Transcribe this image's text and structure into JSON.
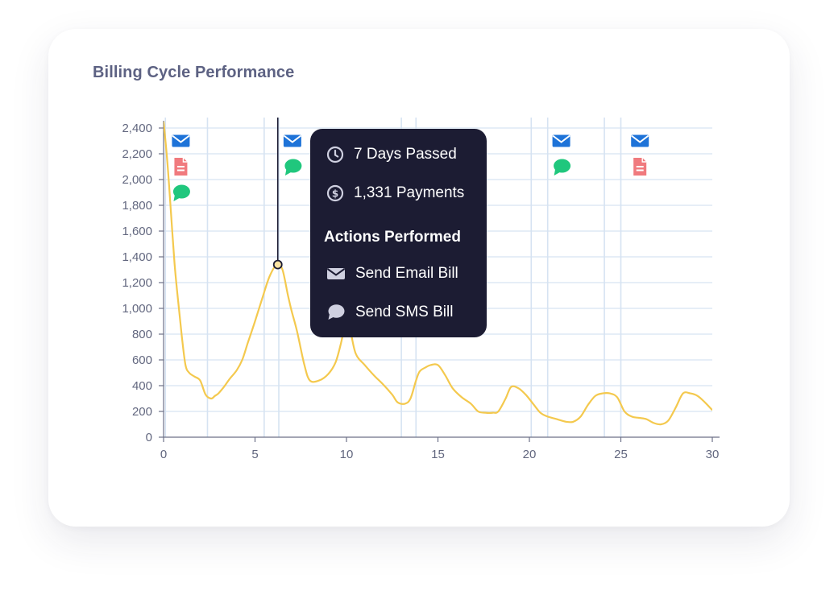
{
  "title": "Billing Cycle Performance",
  "chart_data": {
    "type": "line",
    "title": "Billing Cycle Performance",
    "xlabel": "",
    "ylabel": "",
    "xlim": [
      0,
      30
    ],
    "ylim": [
      0,
      2400
    ],
    "x_ticks": [
      0,
      5,
      10,
      15,
      20,
      25,
      30
    ],
    "y_ticks": [
      0,
      200,
      400,
      600,
      800,
      1000,
      1200,
      1400,
      1600,
      1800,
      2000,
      2200,
      2400
    ],
    "y_tick_labels": [
      "0",
      "200",
      "400",
      "600",
      "800",
      "1,000",
      "1,200",
      "1,400",
      "1,600",
      "1,800",
      "2,000",
      "2,200",
      "2,400"
    ],
    "grid": true,
    "line_color": "#f4c94e",
    "vertical_event_lines": [
      0.1,
      2.4,
      5.5,
      6.3,
      13,
      13.8,
      20.1,
      21,
      24.1,
      25
    ],
    "series": [
      {
        "x": [
          0,
          0.2,
          0.4,
          0.6,
          0.8,
          1.0,
          1.2,
          1.4,
          1.7,
          2.0,
          2.3,
          2.6,
          2.8,
          3.0,
          3.3,
          3.6,
          4.0,
          4.3,
          4.6,
          5.0,
          5.4,
          5.8,
          6.2,
          6.5,
          6.8,
          7.0,
          7.3,
          7.7,
          8.0,
          8.5,
          9.0,
          9.4,
          9.7,
          10.0,
          10.2,
          10.5,
          11.0,
          11.5,
          12.0,
          12.5,
          12.8,
          13.2,
          13.5,
          13.8,
          14.0,
          14.3,
          14.6,
          15.0,
          15.4,
          15.8,
          16.3,
          16.8,
          17.2,
          17.6,
          18.0,
          18.3,
          18.7,
          19.0,
          19.4,
          19.8,
          20.2,
          20.6,
          21.0,
          21.5,
          22.0,
          22.4,
          22.8,
          23.2,
          23.6,
          24.0,
          24.4,
          24.8,
          25.2,
          25.6,
          26.0,
          26.4,
          26.8,
          27.2,
          27.6,
          28.0,
          28.4,
          28.8,
          29.2,
          29.6,
          30.0
        ],
        "y": [
          2450,
          2150,
          1750,
          1350,
          1050,
          780,
          560,
          500,
          470,
          440,
          330,
          300,
          320,
          340,
          390,
          450,
          520,
          600,
          730,
          900,
          1080,
          1250,
          1340,
          1300,
          1100,
          980,
          820,
          560,
          440,
          440,
          490,
          580,
          730,
          920,
          840,
          650,
          560,
          480,
          410,
          330,
          270,
          260,
          300,
          440,
          510,
          540,
          560,
          560,
          480,
          380,
          310,
          260,
          200,
          190,
          190,
          200,
          300,
          390,
          380,
          330,
          260,
          190,
          160,
          140,
          120,
          120,
          160,
          250,
          320,
          340,
          340,
          310,
          200,
          160,
          150,
          140,
          110,
          100,
          130,
          230,
          340,
          340,
          320,
          270,
          210
        ]
      }
    ],
    "event_icons": [
      {
        "x": 0.9,
        "icons": [
          "mail-icon",
          "document-icon",
          "chat-icon"
        ]
      },
      {
        "x": 7.0,
        "icons": [
          "mail-icon",
          "chat-icon"
        ]
      },
      {
        "x": 21.7,
        "icons": [
          "mail-icon",
          "chat-icon"
        ]
      },
      {
        "x": 26.0,
        "icons": [
          "mail-icon",
          "document-icon"
        ]
      }
    ],
    "highlight": {
      "x": 6.2,
      "y": 1340
    }
  },
  "tooltip": {
    "days": "7 Days Passed",
    "payments": "1,331 Payments",
    "heading": "Actions Performed",
    "actions": [
      "Send Email Bill",
      "Send SMS Bill"
    ]
  },
  "colors": {
    "mail": "#1e73d8",
    "document": "#f07a7e",
    "chat": "#20c77d",
    "grid": "#d6e3f2",
    "axis": "#6d7188",
    "tooltip_bg": "#1c1c33",
    "line": "#f4c94e"
  }
}
